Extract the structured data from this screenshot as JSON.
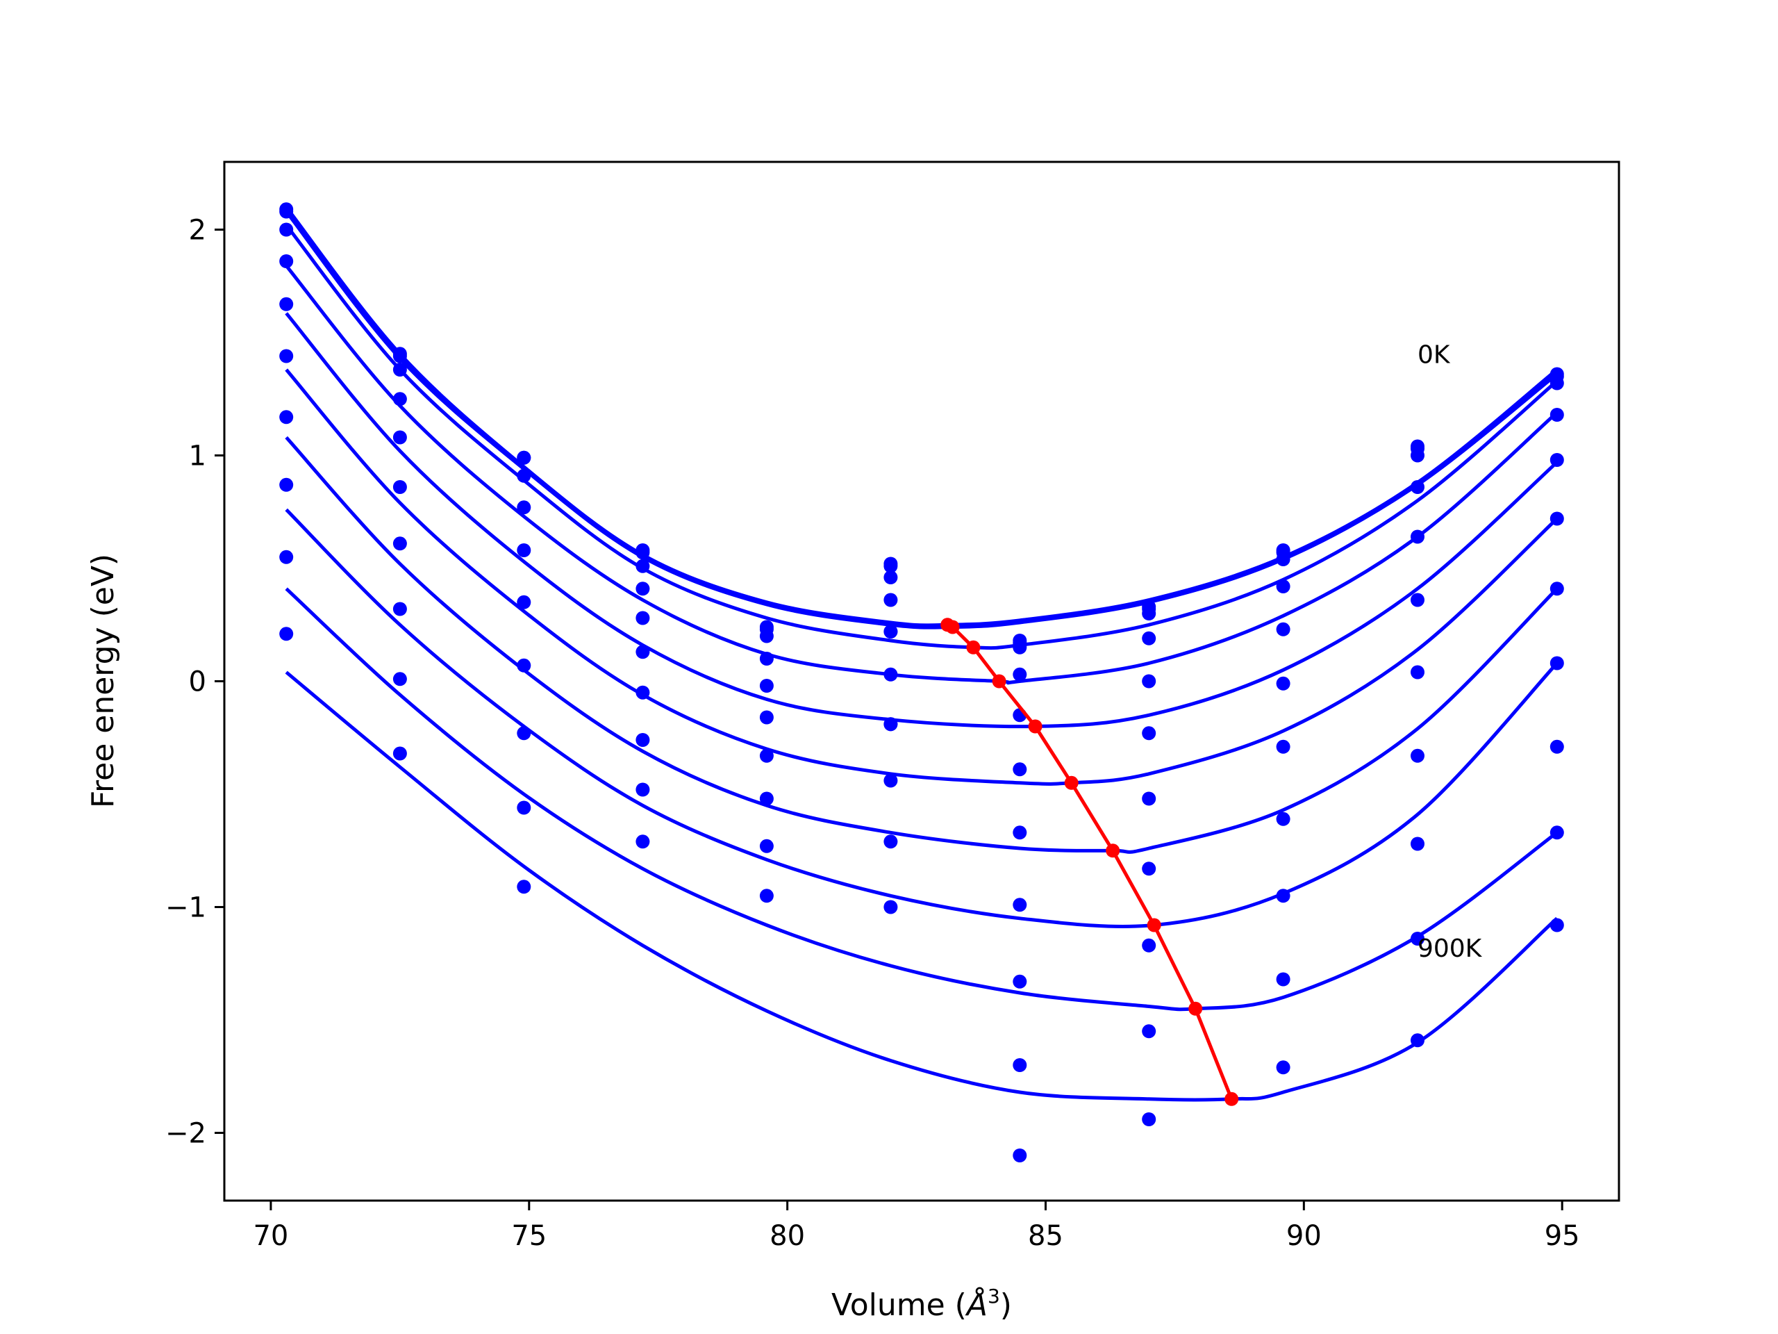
{
  "chart_data": {
    "type": "scatter",
    "title": "",
    "xlabel": "Volume (",
    "xlabel_symbol": "Å",
    "xlabel_power": "3",
    "xlabel_close": ")",
    "ylabel": "Free energy (eV)",
    "xlim": [
      69.1,
      96.1
    ],
    "ylim": [
      -2.3,
      2.3
    ],
    "xticks": [
      70,
      75,
      80,
      85,
      90,
      95
    ],
    "xtick_labels": [
      "70",
      "75",
      "80",
      "85",
      "90",
      "95"
    ],
    "yticks": [
      -2,
      -1,
      0,
      1,
      2
    ],
    "ytick_labels": [
      "−2",
      "−1",
      "0",
      "1",
      "2"
    ],
    "grid": false,
    "colors": {
      "points": "#0000ff",
      "fits": "#0000ff",
      "minimum_path": "#ff0000"
    },
    "annotations": [
      {
        "text": "0K",
        "x": 92.2,
        "y": 1.41
      },
      {
        "text": "900K",
        "x": 92.2,
        "y": -1.22
      }
    ],
    "volumes": [
      70.3,
      72.5,
      74.9,
      77.2,
      79.6,
      82.0,
      84.5,
      87.0,
      89.6,
      92.2,
      94.9
    ],
    "series": [
      {
        "points": [
          2.08,
          1.45,
          0.99,
          0.58,
          0.24,
          0.52,
          0.18,
          0.33,
          0.58,
          1.04,
          1.36
        ],
        "fit": {
          "x": [
            70.3,
            72.5,
            74.9,
            77.2,
            79.6,
            82.0,
            83.1,
            84.5,
            87.0,
            89.6,
            92.2,
            94.9
          ],
          "y": [
            2.1,
            1.45,
            0.95,
            0.56,
            0.35,
            0.26,
            0.25,
            0.27,
            0.36,
            0.55,
            0.88,
            1.38
          ]
        }
      },
      {
        "points": [
          2.09,
          1.44,
          0.99,
          0.57,
          0.23,
          0.51,
          0.17,
          0.32,
          0.57,
          1.03,
          1.35
        ],
        "fit": {
          "x": [
            70.3,
            72.5,
            74.9,
            77.2,
            79.6,
            82.0,
            83.2,
            84.5,
            87.0,
            89.6,
            92.2,
            94.9
          ],
          "y": [
            2.08,
            1.43,
            0.94,
            0.55,
            0.34,
            0.25,
            0.24,
            0.26,
            0.35,
            0.54,
            0.87,
            1.36
          ]
        }
      },
      {
        "points": [
          2.0,
          1.38,
          0.91,
          0.51,
          0.2,
          0.46,
          0.15,
          0.3,
          0.54,
          1.0,
          1.32
        ],
        "fit": {
          "x": [
            70.3,
            72.5,
            74.9,
            77.2,
            79.6,
            82.0,
            83.6,
            84.5,
            87.0,
            89.6,
            92.2,
            94.9
          ],
          "y": [
            2.02,
            1.38,
            0.89,
            0.5,
            0.28,
            0.18,
            0.15,
            0.16,
            0.25,
            0.45,
            0.8,
            1.33
          ]
        }
      },
      {
        "points": [
          1.86,
          1.25,
          0.77,
          0.41,
          0.1,
          0.36,
          0.03,
          0.19,
          0.42,
          0.86,
          1.18
        ],
        "fit": {
          "x": [
            70.3,
            72.5,
            74.9,
            77.2,
            79.6,
            82.0,
            84.1,
            84.5,
            87.0,
            89.6,
            92.2,
            94.9
          ],
          "y": [
            1.84,
            1.22,
            0.73,
            0.36,
            0.12,
            0.03,
            0.0,
            0.0,
            0.08,
            0.29,
            0.64,
            1.19
          ]
        }
      },
      {
        "points": [
          1.67,
          1.08,
          0.58,
          0.28,
          -0.02,
          0.22,
          -0.15,
          0.0,
          0.23,
          0.64,
          0.98
        ],
        "fit": {
          "x": [
            70.3,
            72.5,
            74.9,
            77.2,
            79.6,
            82.0,
            84.8,
            87.0,
            89.6,
            92.2,
            94.9
          ],
          "y": [
            1.63,
            1.02,
            0.53,
            0.16,
            -0.08,
            -0.17,
            -0.2,
            -0.15,
            0.05,
            0.41,
            0.97
          ]
        }
      },
      {
        "points": [
          1.44,
          0.86,
          0.35,
          0.13,
          -0.16,
          0.03,
          -0.39,
          -0.23,
          -0.01,
          0.36,
          0.72
        ],
        "fit": {
          "x": [
            70.3,
            72.5,
            74.9,
            77.2,
            79.6,
            82.0,
            84.5,
            85.5,
            87.0,
            89.6,
            92.2,
            94.9
          ],
          "y": [
            1.38,
            0.79,
            0.31,
            -0.06,
            -0.3,
            -0.41,
            -0.45,
            -0.45,
            -0.41,
            -0.22,
            0.14,
            0.72
          ]
        }
      },
      {
        "points": [
          1.17,
          0.61,
          0.07,
          -0.05,
          -0.33,
          -0.19,
          -0.67,
          -0.52,
          -0.29,
          0.04,
          0.41
        ],
        "fit": {
          "x": [
            70.3,
            72.5,
            74.9,
            77.2,
            79.6,
            82.0,
            84.5,
            86.3,
            87.0,
            89.6,
            92.2,
            94.9
          ],
          "y": [
            1.08,
            0.52,
            0.05,
            -0.31,
            -0.55,
            -0.67,
            -0.74,
            -0.75,
            -0.74,
            -0.57,
            -0.21,
            0.41
          ]
        }
      },
      {
        "points": [
          0.87,
          0.32,
          -0.23,
          -0.26,
          -0.52,
          -0.44,
          -0.99,
          -0.83,
          -0.61,
          -0.33,
          0.08
        ],
        "fit": {
          "x": [
            70.3,
            72.5,
            74.9,
            77.2,
            79.6,
            82.0,
            84.5,
            87.1,
            89.6,
            92.2,
            94.9
          ],
          "y": [
            0.76,
            0.25,
            -0.2,
            -0.55,
            -0.79,
            -0.95,
            -1.05,
            -1.08,
            -0.94,
            -0.59,
            0.08
          ]
        }
      },
      {
        "points": [
          0.55,
          0.01,
          -0.56,
          -0.48,
          -0.73,
          -0.71,
          -1.33,
          -1.17,
          -0.95,
          -0.72,
          -0.29
        ],
        "fit": {
          "x": [
            70.3,
            72.5,
            74.9,
            77.2,
            79.6,
            82.0,
            84.5,
            87.0,
            87.9,
            89.6,
            92.2,
            94.9
          ],
          "y": [
            0.41,
            -0.06,
            -0.5,
            -0.83,
            -1.08,
            -1.26,
            -1.38,
            -1.44,
            -1.45,
            -1.4,
            -1.13,
            -0.67
          ]
        }
      },
      {
        "points": [
          0.21,
          -0.32,
          -0.91,
          -0.71,
          -0.95,
          -1.0,
          -1.7,
          -1.55,
          -1.32,
          -1.14,
          -0.67
        ],
        "fit": {
          "x": [
            70.3,
            72.5,
            74.9,
            77.2,
            79.6,
            82.0,
            84.5,
            87.0,
            88.6,
            89.6,
            92.2,
            94.9
          ],
          "y": [
            0.04,
            -0.38,
            -0.82,
            -1.17,
            -1.46,
            -1.68,
            -1.82,
            -1.85,
            -1.85,
            -1.82,
            -1.6,
            -1.05
          ]
        }
      }
    ],
    "extra_points": [
      {
        "x": 82.0,
        "y": 0.22
      },
      {
        "x": 82.0,
        "y": -0.19
      },
      {
        "x": 84.5,
        "y": -2.1
      },
      {
        "x": 87.0,
        "y": -1.94
      },
      {
        "x": 89.6,
        "y": -1.71
      },
      {
        "x": 92.2,
        "y": -1.59
      },
      {
        "x": 94.9,
        "y": -1.08
      }
    ],
    "minimum_path": {
      "x": [
        83.1,
        83.2,
        83.6,
        84.1,
        84.8,
        85.5,
        86.3,
        87.1,
        87.9,
        88.6
      ],
      "y": [
        0.25,
        0.24,
        0.15,
        0.0,
        -0.2,
        -0.45,
        -0.75,
        -1.08,
        -1.45,
        -1.85
      ]
    }
  }
}
